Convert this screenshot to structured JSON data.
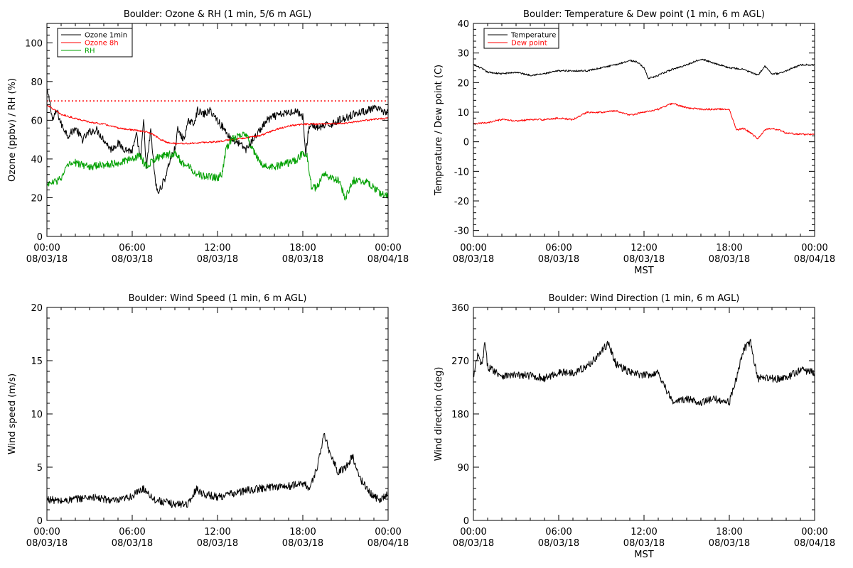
{
  "colors": {
    "background": "#ffffff",
    "axes": "#000000",
    "ozone_1min": "#000000",
    "ozone_8h": "#ff0000",
    "rh": "#00a000",
    "temperature": "#000000",
    "dew_point": "#ff0000",
    "threshold": "#ff0000"
  },
  "x_time_ticks": [
    {
      "hour": 0,
      "time": "00:00",
      "date": "08/03/18"
    },
    {
      "hour": 6,
      "time": "06:00",
      "date": "08/03/18"
    },
    {
      "hour": 12,
      "time": "12:00",
      "date": "08/03/18"
    },
    {
      "hour": 18,
      "time": "18:00",
      "date": "08/03/18"
    },
    {
      "hour": 24,
      "time": "00:00",
      "date": "08/04/18"
    }
  ],
  "chart_data": [
    {
      "type": "line",
      "title": "Boulder: Ozone & RH (1 min, 5/6 m AGL)",
      "xlabel": "",
      "ylabel": "Ozone (ppbv) / RH (%)",
      "xlim": [
        0,
        24
      ],
      "ylim": [
        0,
        110
      ],
      "yticks": [
        0,
        20,
        40,
        60,
        80,
        100
      ],
      "legend_position": "top-left",
      "threshold": {
        "value": 70,
        "style": "dotted",
        "color": "#ff0000"
      },
      "series": [
        {
          "name": "Ozone 1min",
          "color": "#000000",
          "noisy": true,
          "x": [
            0,
            0.2,
            0.4,
            0.7,
            1.0,
            1.5,
            2.0,
            2.5,
            3.0,
            3.5,
            4.0,
            4.5,
            5.0,
            5.5,
            6.0,
            6.3,
            6.6,
            6.8,
            7.0,
            7.3,
            7.6,
            7.8,
            8.0,
            8.3,
            8.6,
            8.8,
            9.0,
            9.2,
            9.6,
            10.0,
            10.3,
            10.6,
            11.0,
            11.5,
            12.0,
            12.5,
            13.0,
            13.5,
            14.0,
            14.5,
            15.0,
            15.5,
            16.0,
            16.5,
            17.0,
            17.5,
            18.0,
            18.2,
            18.4,
            18.6,
            19.0,
            19.5,
            20.0,
            20.5,
            21.0,
            21.5,
            22.0,
            22.5,
            23.0,
            23.5,
            24.0
          ],
          "y": [
            75,
            70,
            60,
            65,
            58,
            52,
            56,
            50,
            54,
            55,
            50,
            45,
            48,
            45,
            44,
            52,
            40,
            60,
            35,
            55,
            30,
            22,
            25,
            30,
            38,
            42,
            45,
            55,
            50,
            60,
            58,
            65,
            63,
            65,
            60,
            55,
            50,
            48,
            45,
            50,
            55,
            60,
            62,
            63,
            64,
            65,
            62,
            42,
            55,
            58,
            56,
            57,
            58,
            60,
            61,
            63,
            64,
            65,
            66,
            65,
            64
          ]
        },
        {
          "name": "Ozone 8h",
          "color": "#ff0000",
          "noisy": false,
          "x": [
            0,
            1,
            2,
            3,
            4,
            5,
            6,
            7,
            7.5,
            8,
            8.5,
            9,
            10,
            11,
            12,
            13,
            14,
            15,
            16,
            17,
            18,
            19,
            20,
            21,
            22,
            23,
            24
          ],
          "y": [
            68,
            63,
            61,
            59,
            58,
            56,
            55,
            54,
            52.5,
            50,
            48.5,
            48,
            48,
            48.5,
            49,
            50,
            51,
            52,
            55,
            57,
            58,
            58,
            58.2,
            58.5,
            59.5,
            60.5,
            61
          ]
        },
        {
          "name": "RH",
          "color": "#00a000",
          "noisy": true,
          "x": [
            0,
            0.5,
            1.0,
            1.5,
            2.0,
            3.0,
            4.0,
            5.0,
            6.0,
            6.5,
            7.0,
            7.5,
            8.0,
            8.5,
            9.0,
            9.5,
            10.0,
            10.5,
            11.0,
            11.5,
            12.0,
            12.3,
            12.6,
            13.0,
            13.5,
            14.0,
            14.5,
            15.0,
            15.5,
            16.0,
            16.5,
            17.0,
            17.5,
            18.0,
            18.3,
            18.6,
            19.0,
            19.5,
            20.0,
            20.5,
            21.0,
            21.5,
            22.0,
            22.5,
            23.0,
            23.5,
            24.0
          ],
          "y": [
            27,
            28,
            30,
            37,
            38,
            36,
            37,
            38,
            40,
            42,
            36,
            40,
            41,
            42,
            43,
            38,
            36,
            33,
            31,
            31,
            30,
            32,
            45,
            50,
            52,
            53,
            44,
            38,
            36,
            36,
            37,
            38,
            39,
            43,
            42,
            26,
            25,
            33,
            30,
            29,
            20,
            29,
            29,
            28,
            25,
            22,
            21
          ]
        }
      ]
    },
    {
      "type": "line",
      "title": "Boulder: Temperature & Dew point (1 min, 6 m AGL)",
      "xlabel": "MST",
      "ylabel": "Temperature / Dew point (C)",
      "xlim": [
        0,
        24
      ],
      "ylim": [
        -32,
        40
      ],
      "yticks": [
        -30,
        -20,
        -10,
        0,
        10,
        20,
        30,
        40
      ],
      "legend_position": "top-left",
      "series": [
        {
          "name": "Temperature",
          "color": "#000000",
          "noisy": false,
          "x": [
            0,
            0.5,
            1.0,
            2.0,
            3.0,
            4.0,
            5.0,
            6.0,
            7.0,
            8.0,
            9.0,
            10.0,
            11.0,
            11.5,
            12.0,
            12.3,
            12.8,
            13.5,
            14.0,
            15.0,
            16.0,
            17.0,
            18.0,
            19.0,
            20.0,
            20.5,
            21.0,
            21.5,
            22.0,
            22.5,
            23.0,
            23.5,
            24.0
          ],
          "y": [
            26,
            25,
            23.5,
            23,
            23.5,
            22.5,
            23,
            24,
            24,
            24,
            25,
            26,
            27.5,
            27,
            25,
            21.5,
            22,
            23.5,
            24.5,
            26,
            28,
            26.5,
            25,
            24.5,
            22.5,
            25.5,
            23,
            23,
            24,
            25,
            26,
            26,
            26
          ]
        },
        {
          "name": "Dew point",
          "color": "#ff0000",
          "noisy": false,
          "x": [
            0,
            1.0,
            2.0,
            3.0,
            4.0,
            5.0,
            6.0,
            7.0,
            8.0,
            9.0,
            10.0,
            11.0,
            12.0,
            13.0,
            14.0,
            15.0,
            16.0,
            17.0,
            18.0,
            18.5,
            19.0,
            19.5,
            20.0,
            20.5,
            21.0,
            21.5,
            22.0,
            23.0,
            24.0
          ],
          "y": [
            6,
            6.5,
            7.5,
            7,
            7.5,
            7.5,
            8,
            7.5,
            10,
            10,
            10.5,
            9,
            10,
            11,
            13,
            11.5,
            11,
            11,
            11,
            4,
            4.5,
            3,
            1,
            4,
            4.5,
            4,
            3,
            2.5,
            2.5
          ]
        }
      ]
    },
    {
      "type": "line",
      "title": "Boulder: Wind Speed (1 min, 6 m AGL)",
      "xlabel": "",
      "ylabel": "Wind speed (m/s)",
      "xlim": [
        0,
        24
      ],
      "ylim": [
        0,
        20
      ],
      "yticks": [
        0,
        5,
        10,
        15,
        20
      ],
      "series": [
        {
          "name": "",
          "color": "#000000",
          "noisy": true,
          "x": [
            0,
            1,
            2,
            3,
            4,
            5,
            6,
            6.8,
            7.2,
            7.5,
            8,
            9,
            10,
            10.5,
            11,
            12,
            13,
            14,
            15,
            16,
            17,
            18,
            18.5,
            19,
            19.5,
            20,
            20.5,
            21,
            21.5,
            22,
            22.5,
            23,
            23.5,
            24
          ],
          "y": [
            2,
            1.8,
            2,
            2.2,
            2,
            1.8,
            2.3,
            3,
            2.5,
            2,
            1.8,
            1.5,
            1.6,
            3,
            2.5,
            2.2,
            2.5,
            2.8,
            3,
            3.2,
            3.2,
            3.5,
            3,
            5,
            8,
            6,
            4.5,
            5,
            6,
            4,
            3,
            2.2,
            2,
            2.5
          ]
        }
      ]
    },
    {
      "type": "line",
      "title": "Boulder: Wind Direction (1 min, 6 m AGL)",
      "xlabel": "MST",
      "ylabel": "Wind direction (deg)",
      "xlim": [
        0,
        24
      ],
      "ylim": [
        0,
        360
      ],
      "yticks": [
        0,
        90,
        180,
        270,
        360
      ],
      "series": [
        {
          "name": "",
          "color": "#000000",
          "noisy": true,
          "x": [
            0,
            0.3,
            0.6,
            0.8,
            1.0,
            2.0,
            3.0,
            4.0,
            5.0,
            6.0,
            7.0,
            8.0,
            9.0,
            9.5,
            10.0,
            11.0,
            12.0,
            13.0,
            14.0,
            15.0,
            16.0,
            17.0,
            18.0,
            18.5,
            19.0,
            19.5,
            20.0,
            21.0,
            22.0,
            23.0,
            24.0
          ],
          "y": [
            240,
            280,
            260,
            300,
            260,
            245,
            245,
            245,
            240,
            250,
            250,
            260,
            285,
            300,
            265,
            250,
            245,
            250,
            200,
            205,
            200,
            205,
            200,
            240,
            290,
            300,
            240,
            240,
            240,
            255,
            250
          ]
        }
      ]
    }
  ]
}
